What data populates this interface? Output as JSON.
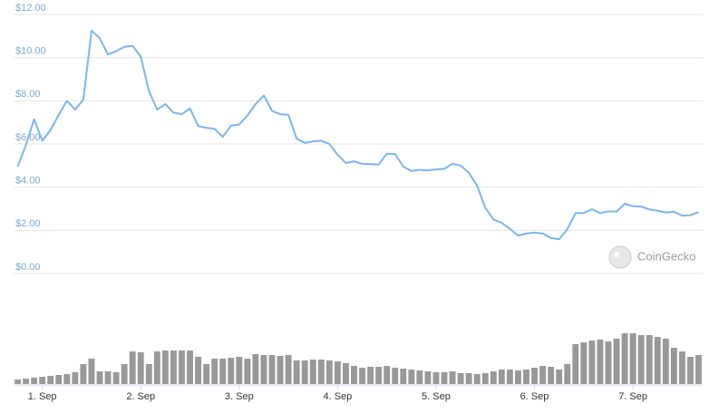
{
  "chart_data": [
    {
      "type": "line",
      "color": "#7cb5ec",
      "grid": true,
      "watermark": "CoinGecko",
      "ylim": [
        0,
        12
      ],
      "yticks": [
        {
          "value": 0,
          "label": "$0.00"
        },
        {
          "value": 2,
          "label": "$2.00"
        },
        {
          "value": 4,
          "label": "$4.00"
        },
        {
          "value": 6,
          "label": "$6.00"
        },
        {
          "value": 8,
          "label": "$8.00"
        },
        {
          "value": 10,
          "label": "$10.00"
        },
        {
          "value": 12,
          "label": "$12.00"
        }
      ],
      "values": [
        4.95,
        5.95,
        7.15,
        6.15,
        6.65,
        7.35,
        8.0,
        7.6,
        8.05,
        11.25,
        10.9,
        10.15,
        10.3,
        10.5,
        10.55,
        10.05,
        8.45,
        7.6,
        7.85,
        7.45,
        7.38,
        7.65,
        6.83,
        6.75,
        6.7,
        6.33,
        6.85,
        6.9,
        7.32,
        7.85,
        8.25,
        7.53,
        7.38,
        7.35,
        6.25,
        6.05,
        6.12,
        6.15,
        6.0,
        5.5,
        5.12,
        5.2,
        5.08,
        5.07,
        5.05,
        5.55,
        5.54,
        4.95,
        4.75,
        4.8,
        4.78,
        4.82,
        4.85,
        5.08,
        5.0,
        4.67,
        4.07,
        3.05,
        2.5,
        2.35,
        2.07,
        1.76,
        1.85,
        1.9,
        1.85,
        1.65,
        1.59,
        2.05,
        2.8,
        2.8,
        2.98,
        2.8,
        2.88,
        2.87,
        3.23,
        3.12,
        3.1,
        2.97,
        2.91,
        2.83,
        2.86,
        2.68,
        2.7,
        2.85
      ]
    },
    {
      "type": "bar",
      "color": "#999999",
      "ylim": [
        0,
        60
      ],
      "categories": [
        null,
        null,
        null,
        "1. Sep",
        null,
        null,
        null,
        null,
        null,
        null,
        null,
        null,
        null,
        null,
        null,
        "2. Sep",
        null,
        null,
        null,
        null,
        null,
        null,
        null,
        null,
        null,
        null,
        null,
        "3. Sep",
        null,
        null,
        null,
        null,
        null,
        null,
        null,
        null,
        null,
        null,
        null,
        "4. Sep",
        null,
        null,
        null,
        null,
        null,
        null,
        null,
        null,
        null,
        null,
        null,
        "5. Sep",
        null,
        null,
        null,
        null,
        null,
        null,
        null,
        null,
        null,
        null,
        null,
        "6. Sep",
        null,
        null,
        null,
        null,
        null,
        null,
        null,
        null,
        null,
        null,
        null,
        "7. Sep",
        null,
        null,
        null,
        null,
        null,
        null,
        null,
        null
      ],
      "values": [
        5,
        6,
        7,
        8,
        9,
        10,
        11,
        13,
        22,
        28,
        14,
        14,
        13,
        22,
        36,
        35,
        22,
        36,
        37,
        37,
        37,
        37,
        30,
        22,
        28,
        28,
        29,
        30,
        28,
        33,
        32,
        32,
        31,
        32,
        26,
        26,
        27,
        27,
        26,
        25,
        23,
        20,
        18,
        19,
        19,
        20,
        18,
        17,
        16,
        15,
        14,
        13,
        13,
        14,
        12,
        12,
        11,
        12,
        14,
        16,
        16,
        15,
        16,
        18,
        20,
        19,
        16,
        22,
        44,
        46,
        48,
        49,
        47,
        50,
        56,
        56,
        54,
        54,
        52,
        50,
        40,
        36,
        30,
        32
      ]
    }
  ]
}
